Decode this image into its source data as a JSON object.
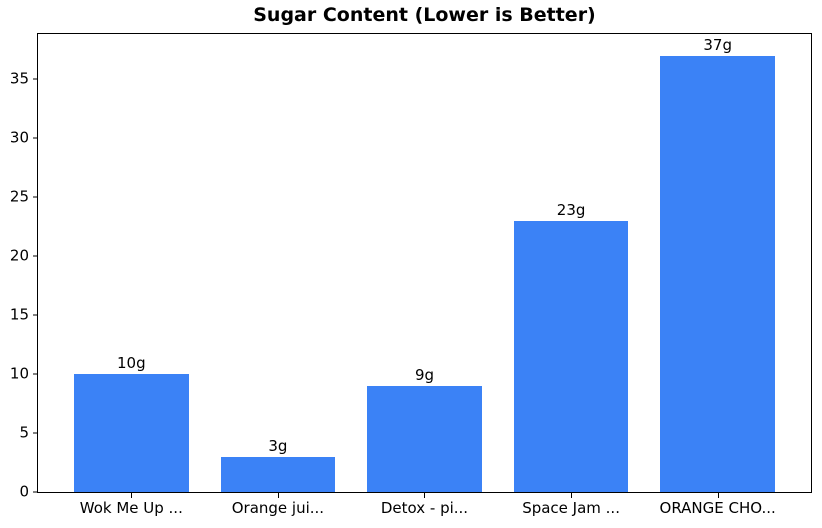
{
  "chart_data": {
    "type": "bar",
    "title": "Sugar Content (Lower is Better)",
    "categories": [
      "Wok Me Up ...",
      "Orange jui...",
      "Detox - pi...",
      "Space Jam ...",
      "ORANGE CHO..."
    ],
    "values": [
      10,
      3,
      9,
      23,
      37
    ],
    "bar_labels": [
      "10g",
      "3g",
      "9g",
      "23g",
      "37g"
    ],
    "value_suffix": "g",
    "xlabel": "",
    "ylabel": "",
    "yticks": [
      0,
      5,
      10,
      15,
      20,
      25,
      30,
      35
    ],
    "ylim": [
      0,
      38.85
    ],
    "grid": false,
    "legend": null,
    "bar_color": "#3b82f6",
    "axis_color": "#000000",
    "text_color": "#000000",
    "background_color": "#ffffff"
  }
}
